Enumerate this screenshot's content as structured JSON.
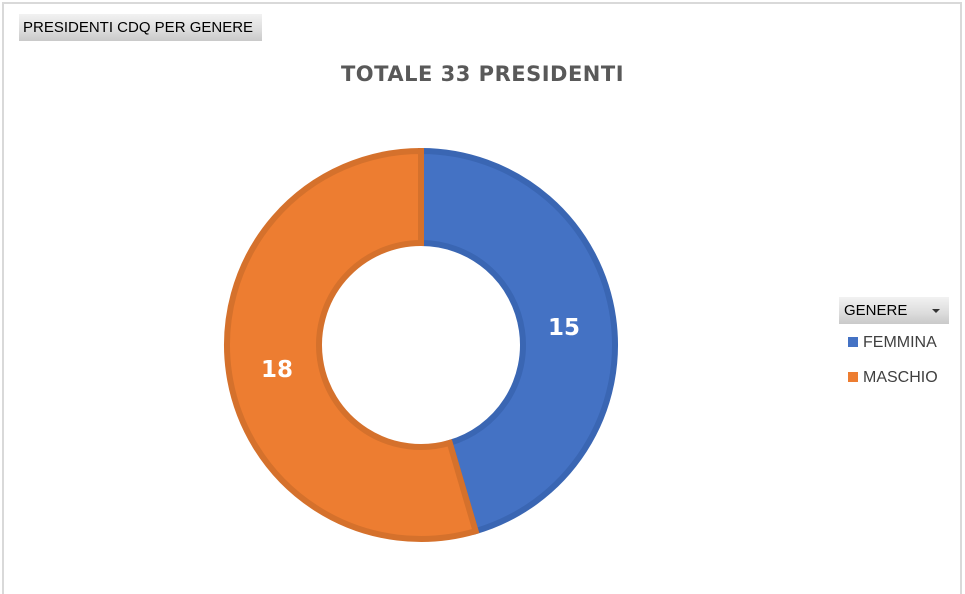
{
  "field_button": {
    "label": "PRESIDENTI CDQ PER GENERE"
  },
  "legend": {
    "header": "GENERE",
    "items": [
      {
        "label": "FEMMINA",
        "color": "#4472c4"
      },
      {
        "label": "MASCHIO",
        "color": "#ed7d31"
      }
    ]
  },
  "chart_data": {
    "type": "pie",
    "subtype": "doughnut",
    "title": "TOTALE 33 PRESIDENTI",
    "categories": [
      "FEMMINA",
      "MASCHIO"
    ],
    "values": [
      15,
      18
    ],
    "colors": [
      "#4472c4",
      "#ed7d31"
    ],
    "data_labels": [
      "15",
      "18"
    ],
    "legend_title": "GENERE",
    "legend_position": "right"
  }
}
